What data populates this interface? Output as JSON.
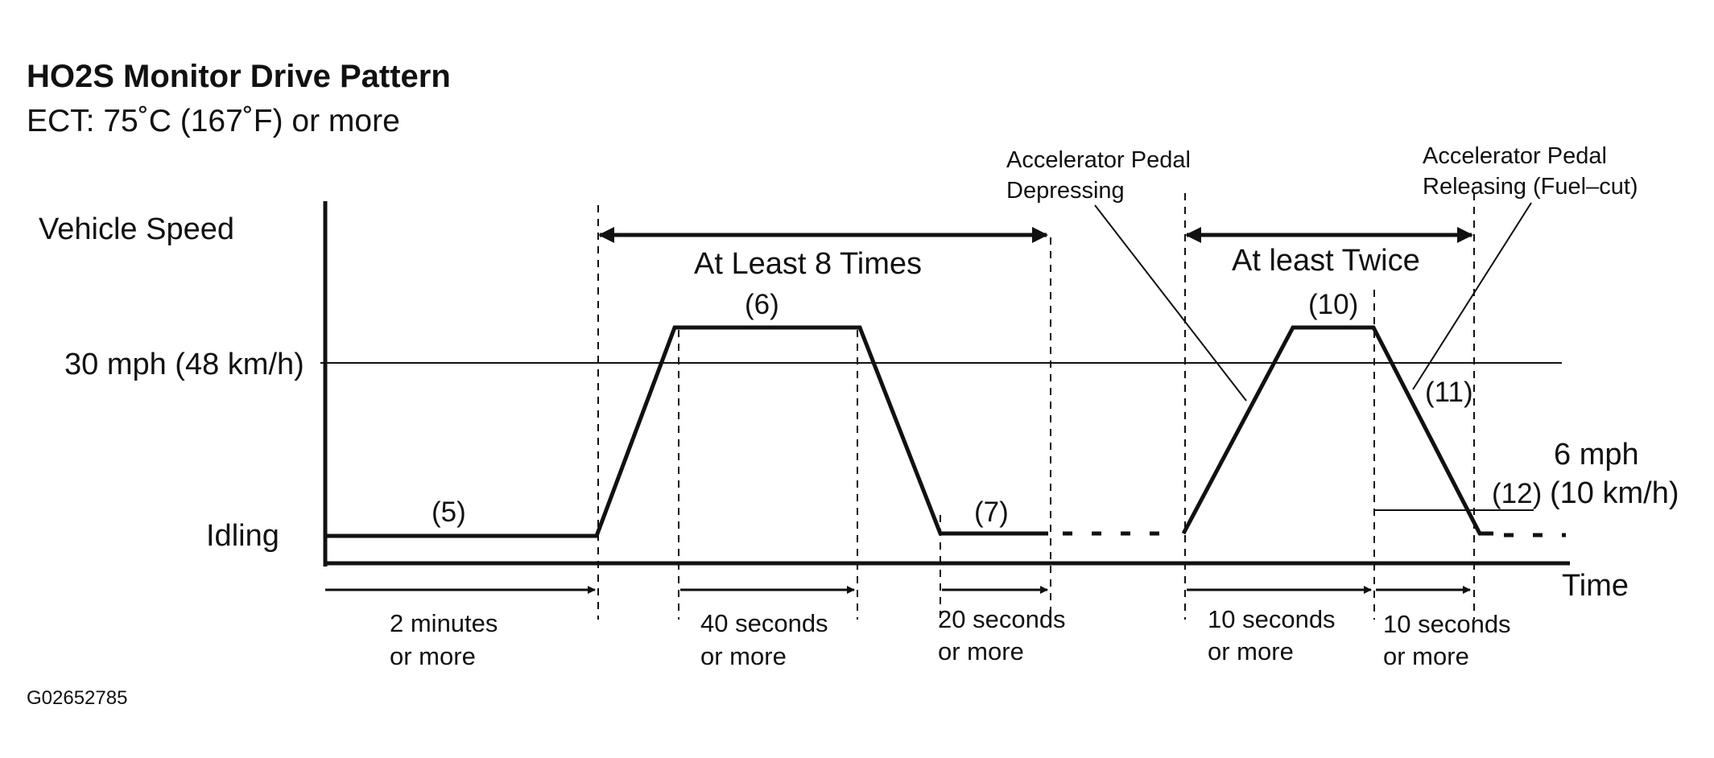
{
  "title": "HO2S Monitor Drive Pattern",
  "subtitle": "ECT: 75˚C (167˚F) or more",
  "axes": {
    "y_label": "Vehicle Speed",
    "x_label": "Time",
    "speed_30": "30 mph (48 km/h)",
    "idling": "Idling",
    "speed_6_line1": "6 mph",
    "speed_6_line2": "(10 km/h)"
  },
  "repeat_labels": {
    "repeat_8": "At Least 8 Times",
    "repeat_2": "At least Twice"
  },
  "steps": {
    "s5": "(5)",
    "s6": "(6)",
    "s7": "(7)",
    "s10": "(10)",
    "s11": "(11)",
    "s12": "(12)"
  },
  "pedal": {
    "depress_line1": "Accelerator Pedal",
    "depress_line2": "Depressing",
    "release_line1": "Accelerator Pedal",
    "release_line2": "Releasing (Fuel–cut)"
  },
  "durations": [
    {
      "line1": "2 minutes",
      "line2": "or more"
    },
    {
      "line1": "40 seconds",
      "line2": "or more"
    },
    {
      "line1": "20 seconds",
      "line2": "or more"
    },
    {
      "line1": "10 seconds",
      "line2": "or more"
    },
    {
      "line1": "10 seconds",
      "line2": "or more"
    }
  ],
  "figure_code": "G02652785"
}
